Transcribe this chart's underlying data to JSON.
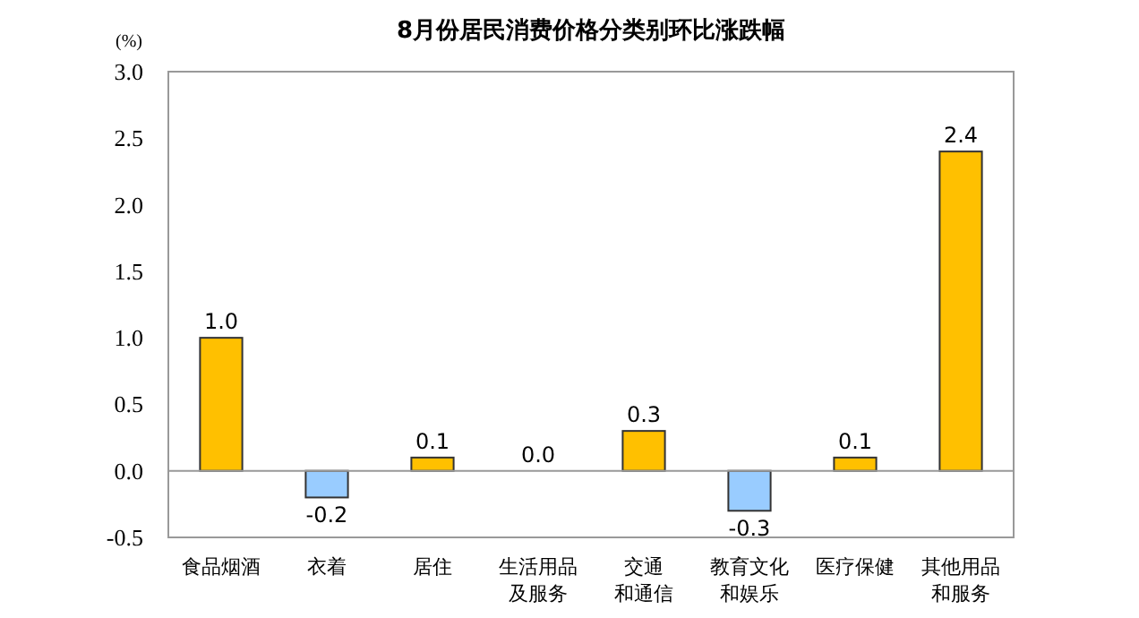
{
  "chart_data": {
    "type": "bar",
    "title": "8月份居民消费价格分类别环比涨跌幅",
    "ylabel": "(%)",
    "categories": [
      "食品烟酒",
      "衣着",
      "居住",
      "生活用品及服务",
      "交通和通信",
      "教育文化和娱乐",
      "医疗保健",
      "其他用品和服务"
    ],
    "values": [
      1.0,
      -0.2,
      0.1,
      0.0,
      0.3,
      -0.3,
      0.1,
      2.4
    ],
    "colors": [
      "#ffc000",
      "#99ccff",
      "#ffc000",
      "#ffc000",
      "#ffc000",
      "#99ccff",
      "#ffc000",
      "#ffc000"
    ],
    "value_labels": [
      "1.0",
      "-0.2",
      "0.1",
      "0.0",
      "0.3",
      "-0.3",
      "0.1",
      "2.4"
    ],
    "ylim": [
      -0.5,
      3.0
    ],
    "yticks": [
      {
        "value": -0.5,
        "label": "-0.5"
      },
      {
        "value": 0,
        "label": "0.0"
      },
      {
        "value": 0.5,
        "label": "0.5"
      },
      {
        "value": 1.0,
        "label": "1.0"
      },
      {
        "value": 1.5,
        "label": "1.5"
      },
      {
        "value": 2.0,
        "label": "2.0"
      },
      {
        "value": 2.5,
        "label": "2.5"
      },
      {
        "value": 3.0,
        "label": "3.0"
      }
    ]
  }
}
